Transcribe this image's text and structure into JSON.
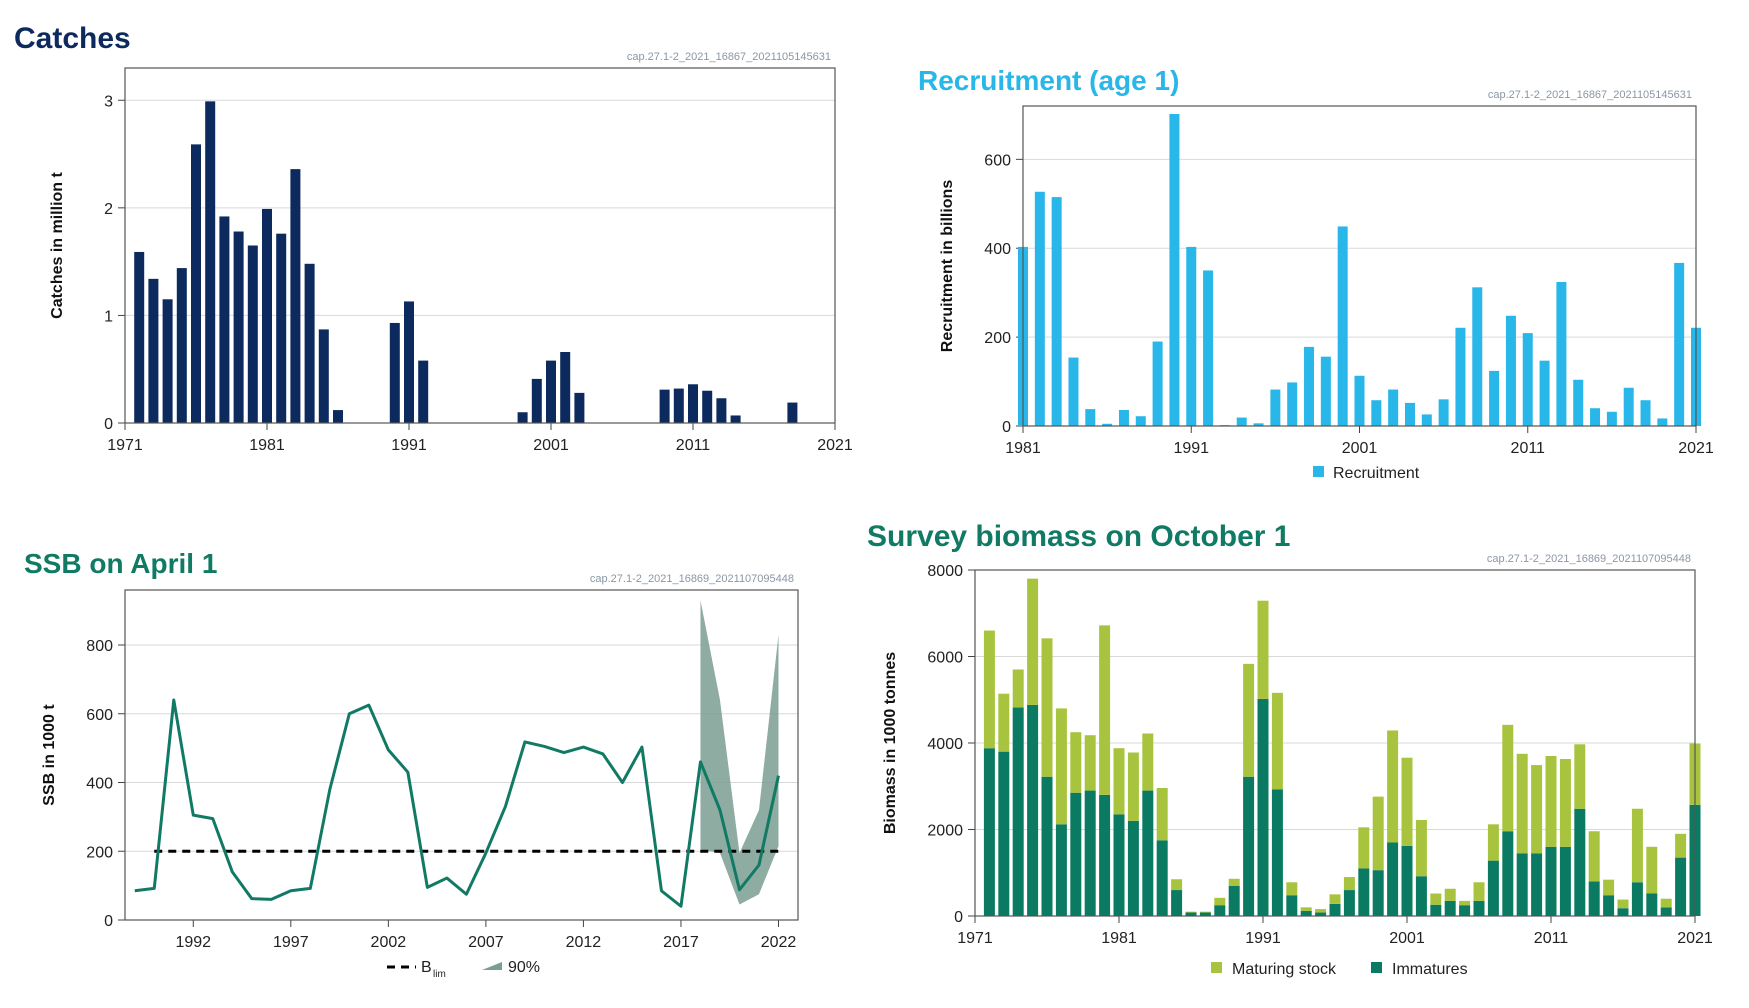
{
  "colors": {
    "catches": "#0d2a5e",
    "recruitment": "#29b6e8",
    "ssb": "#117a65",
    "ssb_band": "#7a9e91",
    "maturing": "#a8c43f",
    "immatures": "#0b7a62",
    "grid": "#d9d9d9",
    "caption": "#8a97a6"
  },
  "chart_data": [
    {
      "id": "catches",
      "type": "bar",
      "title": "Catches",
      "caption": "cap.27.1-2_2021_16867_2021105145631",
      "ylabel": "Catches in million t",
      "xlabel": "",
      "xlim": [
        1971,
        2021
      ],
      "ylim": [
        0,
        3.3
      ],
      "yticks": [
        "0",
        "1",
        "2",
        "3"
      ],
      "xticks": [
        "1971",
        "1981",
        "1991",
        "2001",
        "2011",
        "2021"
      ],
      "x": [
        1972,
        1973,
        1974,
        1975,
        1976,
        1977,
        1978,
        1979,
        1980,
        1981,
        1982,
        1983,
        1984,
        1985,
        1986,
        1990,
        1991,
        1992,
        1999,
        2000,
        2001,
        2002,
        2003,
        2009,
        2010,
        2011,
        2012,
        2013,
        2014,
        2018
      ],
      "values": [
        1.59,
        1.34,
        1.15,
        1.44,
        2.59,
        2.99,
        1.92,
        1.78,
        1.65,
        1.99,
        1.76,
        2.36,
        1.48,
        0.87,
        0.12,
        0.93,
        1.13,
        0.58,
        0.1,
        0.41,
        0.58,
        0.66,
        0.28,
        0.31,
        0.32,
        0.36,
        0.3,
        0.23,
        0.07,
        0.19
      ],
      "grid": true
    },
    {
      "id": "recruitment",
      "type": "bar",
      "title": "Recruitment (age 1)",
      "caption": "cap.27.1-2_2021_16867_2021105145631",
      "ylabel": "Recruitment in billions",
      "xlabel": "",
      "xlim": [
        1981,
        2021
      ],
      "ylim": [
        0,
        720
      ],
      "yticks": [
        "0",
        "200",
        "400",
        "600"
      ],
      "xticks": [
        "1981",
        "1991",
        "2001",
        "2011",
        "2021"
      ],
      "legend": [
        "Recruitment"
      ],
      "legend_position": "bottom",
      "x": [
        1981,
        1982,
        1983,
        1984,
        1985,
        1986,
        1987,
        1988,
        1989,
        1990,
        1991,
        1992,
        1993,
        1994,
        1995,
        1996,
        1997,
        1998,
        1999,
        2000,
        2001,
        2002,
        2003,
        2004,
        2005,
        2006,
        2007,
        2008,
        2009,
        2010,
        2011,
        2012,
        2013,
        2014,
        2015,
        2016,
        2017,
        2018,
        2019,
        2020,
        2021
      ],
      "values": [
        403,
        527,
        515,
        154,
        38,
        5,
        36,
        22,
        190,
        702,
        403,
        350,
        2,
        19,
        6,
        82,
        98,
        178,
        156,
        449,
        113,
        58,
        82,
        52,
        26,
        60,
        221,
        312,
        124,
        248,
        209,
        147,
        324,
        104,
        40,
        32,
        86,
        58,
        17,
        367,
        221
      ],
      "grid": true
    },
    {
      "id": "ssb",
      "type": "line",
      "title": "SSB on April 1",
      "caption": "cap.27.1-2_2021_16869_2021107095448",
      "ylabel": "SSB in 1000 t",
      "xlabel": "",
      "xlim": [
        1988.5,
        2023
      ],
      "ylim": [
        0,
        960
      ],
      "yticks": [
        "0",
        "200",
        "400",
        "600",
        "800"
      ],
      "xticks": [
        "1992",
        "1997",
        "2002",
        "2007",
        "2012",
        "2017",
        "2022"
      ],
      "blim": 200,
      "legend": [
        "B",
        "lim",
        "90%"
      ],
      "legend_position": "bottom",
      "x": [
        1989,
        1990,
        1991,
        1992,
        1993,
        1994,
        1995,
        1996,
        1997,
        1998,
        1999,
        2000,
        2001,
        2002,
        2003,
        2004,
        2005,
        2006,
        2007,
        2008,
        2009,
        2010,
        2011,
        2012,
        2013,
        2014,
        2015,
        2016,
        2017,
        2018,
        2019,
        2020,
        2021,
        2022
      ],
      "values": [
        85,
        92,
        640,
        305,
        295,
        140,
        62,
        60,
        85,
        92,
        380,
        600,
        625,
        495,
        430,
        95,
        122,
        75,
        195,
        330,
        518,
        505,
        487,
        503,
        483,
        400,
        503,
        85,
        40,
        460,
        320,
        88,
        160,
        420
      ],
      "band": {
        "x": [
          2018,
          2019,
          2020,
          2021,
          2022
        ],
        "low": [
          205,
          195,
          45,
          75,
          215
        ],
        "high": [
          930,
          640,
          195,
          320,
          830
        ]
      },
      "grid": true
    },
    {
      "id": "survey",
      "type": "bar",
      "stacked": true,
      "title": "Survey biomass on October 1",
      "caption": "cap.27.1-2_2021_16869_2021107095448",
      "ylabel": "Biomass in 1000 tonnes",
      "xlabel": "",
      "xlim": [
        1971,
        2021
      ],
      "ylim": [
        0,
        8000
      ],
      "yticks": [
        "0",
        "2000",
        "4000",
        "6000",
        "8000"
      ],
      "xticks": [
        "1971",
        "1981",
        "1991",
        "2001",
        "2011",
        "2021"
      ],
      "legend_position": "bottom",
      "x": [
        1972,
        1973,
        1974,
        1975,
        1976,
        1977,
        1978,
        1979,
        1980,
        1981,
        1982,
        1983,
        1984,
        1985,
        1986,
        1987,
        1988,
        1989,
        1990,
        1991,
        1992,
        1993,
        1994,
        1995,
        1996,
        1997,
        1998,
        1999,
        2000,
        2001,
        2002,
        2003,
        2004,
        2005,
        2006,
        2007,
        2008,
        2009,
        2010,
        2011,
        2012,
        2013,
        2014,
        2015,
        2016,
        2017,
        2018,
        2019,
        2020,
        2021
      ],
      "series": [
        {
          "name": "Immatures",
          "values": [
            3880,
            3800,
            4820,
            4880,
            3220,
            2120,
            2850,
            2900,
            2800,
            2350,
            2200,
            2900,
            1750,
            600,
            80,
            80,
            250,
            700,
            3220,
            5020,
            2930,
            480,
            120,
            80,
            280,
            600,
            1100,
            1060,
            1700,
            1620,
            920,
            260,
            350,
            250,
            350,
            1280,
            1960,
            1450,
            1450,
            1600,
            1600,
            2480,
            800,
            480,
            180,
            780,
            520,
            200,
            1350,
            2570
          ]
        },
        {
          "name": "Maturing stock",
          "values": [
            2720,
            1340,
            880,
            2920,
            3200,
            2680,
            1400,
            1280,
            3920,
            1530,
            1580,
            1320,
            1210,
            250,
            20,
            20,
            170,
            160,
            2610,
            2270,
            2230,
            300,
            80,
            80,
            220,
            300,
            950,
            1700,
            2590,
            2040,
            1300,
            260,
            280,
            100,
            430,
            840,
            2460,
            2300,
            2040,
            2100,
            2030,
            1490,
            1160,
            360,
            200,
            1700,
            1080,
            200,
            550,
            1420
          ]
        }
      ],
      "grid": true
    }
  ]
}
